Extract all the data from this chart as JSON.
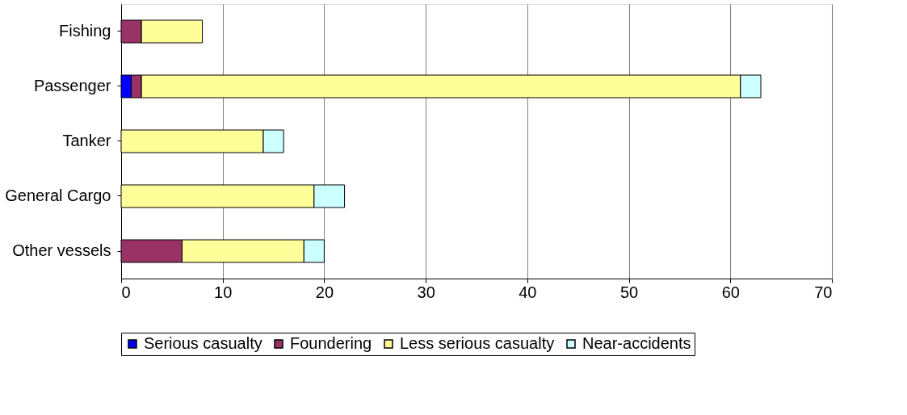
{
  "chart_data": {
    "type": "bar",
    "orientation": "horizontal",
    "stacked": true,
    "categories": [
      "Fishing",
      "Passenger",
      "Tanker",
      "General Cargo",
      "Other vessels"
    ],
    "series": [
      {
        "name": "Serious casualty",
        "color": "#0000ff",
        "values": [
          null,
          1,
          null,
          null,
          null
        ]
      },
      {
        "name": "Foundering",
        "color": "#993366",
        "values": [
          2,
          1,
          null,
          null,
          6
        ]
      },
      {
        "name": "Less serious casualty",
        "color": "#ffff99",
        "values": [
          6,
          59,
          14,
          19,
          12
        ]
      },
      {
        "name": "Near-accidents",
        "color": "#ccffff",
        "values": [
          null,
          2,
          2,
          3,
          2
        ]
      }
    ],
    "xlim": [
      0,
      70
    ],
    "xticks": [
      0,
      10,
      20,
      30,
      40,
      50,
      60,
      70
    ],
    "grid": "x",
    "legend": "bottom"
  }
}
